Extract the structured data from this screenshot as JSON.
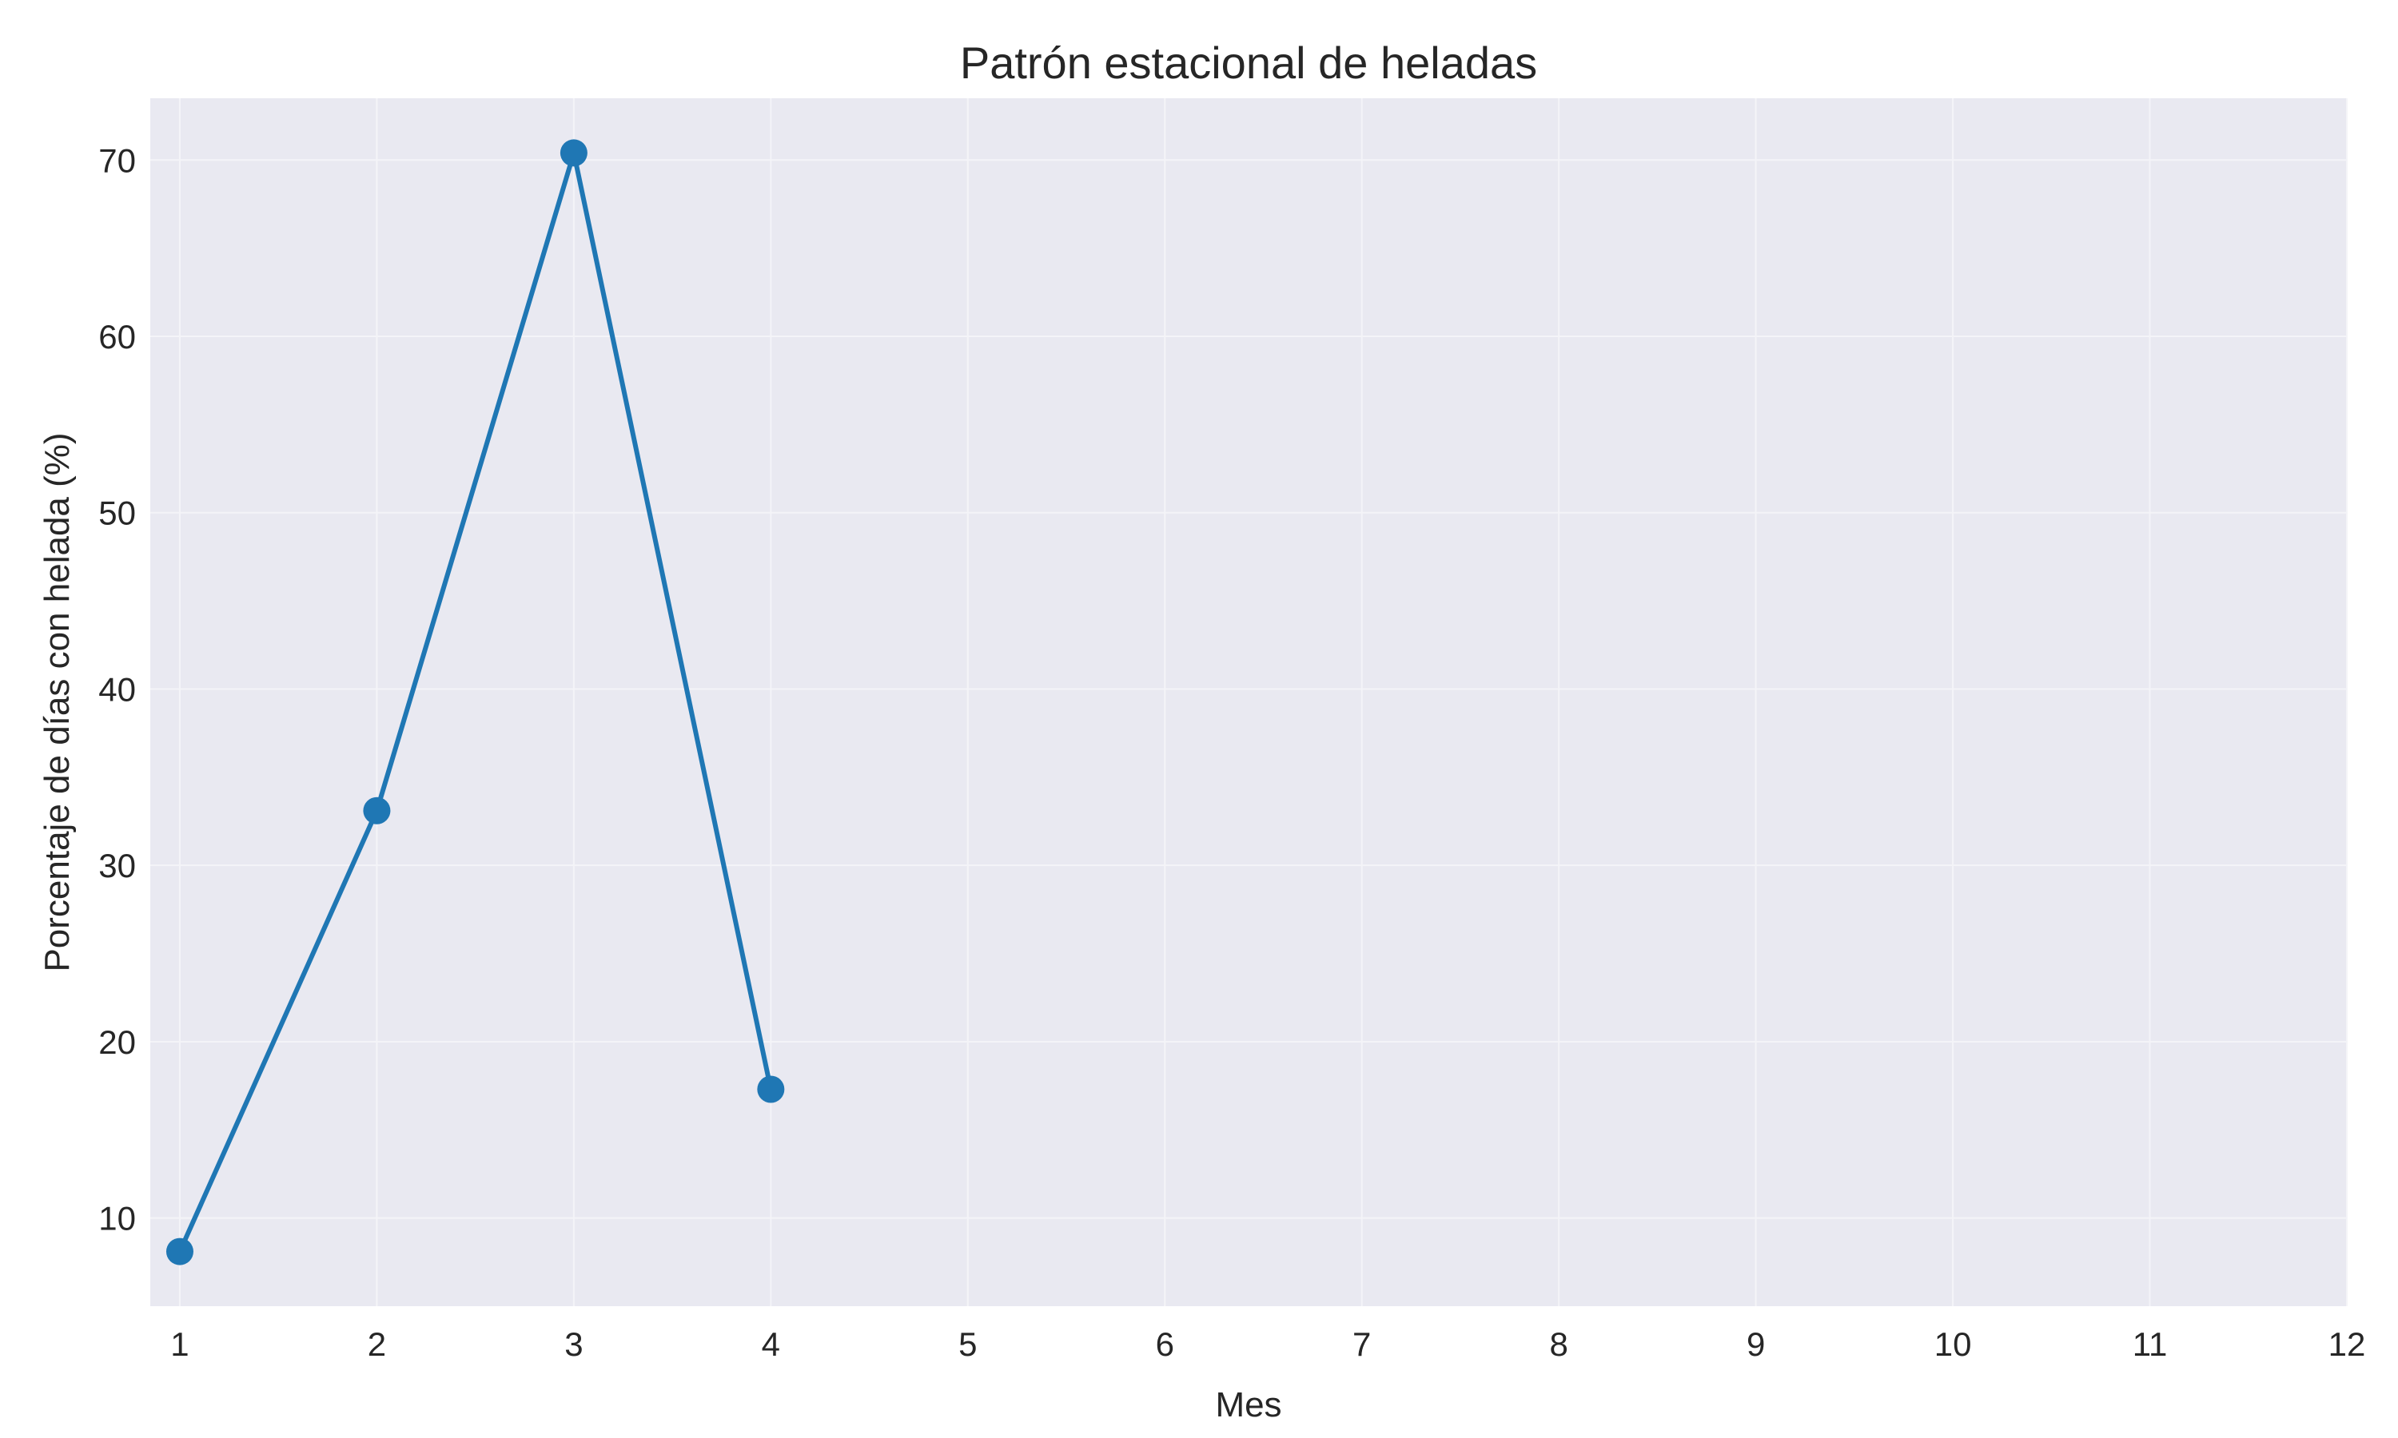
{
  "chart_data": {
    "type": "line",
    "title": "Patrón estacional de heladas",
    "xlabel": "Mes",
    "ylabel": "Porcentaje de días con helada (%)",
    "xlim": [
      0.85,
      12
    ],
    "ylim": [
      5,
      73.5
    ],
    "x_ticks": [
      1,
      2,
      3,
      4,
      5,
      6,
      7,
      8,
      9,
      10,
      11,
      12
    ],
    "y_ticks": [
      10,
      20,
      30,
      40,
      50,
      60,
      70
    ],
    "grid": true,
    "series": [
      {
        "x": [
          1,
          2,
          3,
          4
        ],
        "values": [
          8.1,
          33.1,
          70.4,
          17.3
        ],
        "marker": "circle"
      }
    ],
    "colors": {
      "line": "#1f77b4",
      "plot_background": "#e9e9f1",
      "grid": "#f4f4f8",
      "text": "#262626"
    }
  }
}
